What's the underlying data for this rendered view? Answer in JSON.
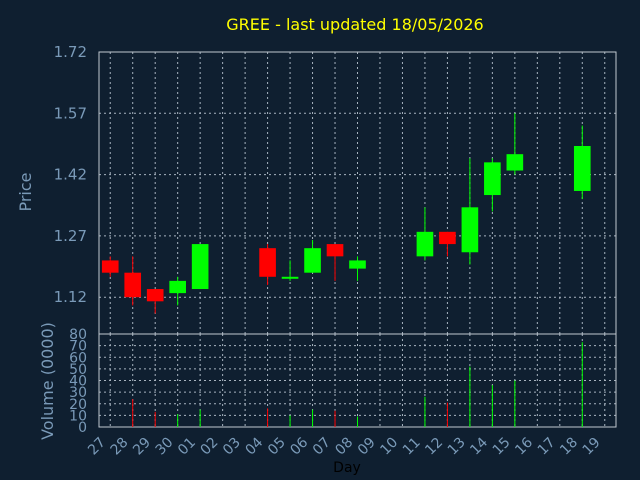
{
  "chart_data": {
    "type": "candlestick",
    "title": "GREE - last updated 18/05/2026",
    "xlabel": "Day",
    "ylabel": "Price",
    "vlabel": "Volume (0000)",
    "ylim": [
      1.03,
      1.72
    ],
    "vlim": [
      0,
      80
    ],
    "price_ticks": [
      "1.12",
      "1.27",
      "1.42",
      "1.57",
      "1.72"
    ],
    "volume_ticks": [
      "0",
      "10",
      "20",
      "30",
      "40",
      "50",
      "60",
      "70",
      "80"
    ],
    "x_labels": [
      "27",
      "28",
      "29",
      "30",
      "01",
      "02",
      "03",
      "04",
      "05",
      "06",
      "07",
      "08",
      "09",
      "10",
      "11",
      "12",
      "13",
      "14",
      "15",
      "16",
      "17",
      "18",
      "19"
    ],
    "grid": true,
    "colors": {
      "up": "#00ff00",
      "down": "#ff0000",
      "title": "#ffff00",
      "axis": "#7a9ab8",
      "background": "#0f1f30"
    },
    "candles": [
      {
        "x": "27",
        "open": 1.21,
        "high": 1.22,
        "low": 1.17,
        "close": 1.18,
        "volume": 0
      },
      {
        "x": "28",
        "open": 1.18,
        "high": 1.22,
        "low": 1.1,
        "close": 1.12,
        "volume": 24
      },
      {
        "x": "29",
        "open": 1.14,
        "high": 1.14,
        "low": 1.08,
        "close": 1.11,
        "volume": 13
      },
      {
        "x": "30",
        "open": 1.13,
        "high": 1.17,
        "low": 1.1,
        "close": 1.16,
        "volume": 11
      },
      {
        "x": "01",
        "open": 1.14,
        "high": 1.25,
        "low": 1.14,
        "close": 1.25,
        "volume": 15
      },
      {
        "x": "04",
        "open": 1.24,
        "high": 1.25,
        "low": 1.15,
        "close": 1.17,
        "volume": 16
      },
      {
        "x": "05",
        "open": 1.17,
        "high": 1.21,
        "low": 1.16,
        "close": 1.17,
        "volume": 10
      },
      {
        "x": "06",
        "open": 1.18,
        "high": 1.26,
        "low": 1.18,
        "close": 1.24,
        "volume": 15
      },
      {
        "x": "07",
        "open": 1.25,
        "high": 1.25,
        "low": 1.16,
        "close": 1.22,
        "volume": 14
      },
      {
        "x": "08",
        "open": 1.19,
        "high": 1.22,
        "low": 1.16,
        "close": 1.21,
        "volume": 9
      },
      {
        "x": "11",
        "open": 1.22,
        "high": 1.34,
        "low": 1.21,
        "close": 1.28,
        "volume": 26
      },
      {
        "x": "12",
        "open": 1.28,
        "high": 1.28,
        "low": 1.22,
        "close": 1.25,
        "volume": 21
      },
      {
        "x": "13",
        "open": 1.23,
        "high": 1.46,
        "low": 1.2,
        "close": 1.34,
        "volume": 52
      },
      {
        "x": "14",
        "open": 1.37,
        "high": 1.46,
        "low": 1.33,
        "close": 1.45,
        "volume": 36
      },
      {
        "x": "15",
        "open": 1.43,
        "high": 1.57,
        "low": 1.42,
        "close": 1.47,
        "volume": 40
      },
      {
        "x": "18",
        "open": 1.38,
        "high": 1.54,
        "low": 1.36,
        "close": 1.49,
        "volume": 73
      }
    ]
  }
}
